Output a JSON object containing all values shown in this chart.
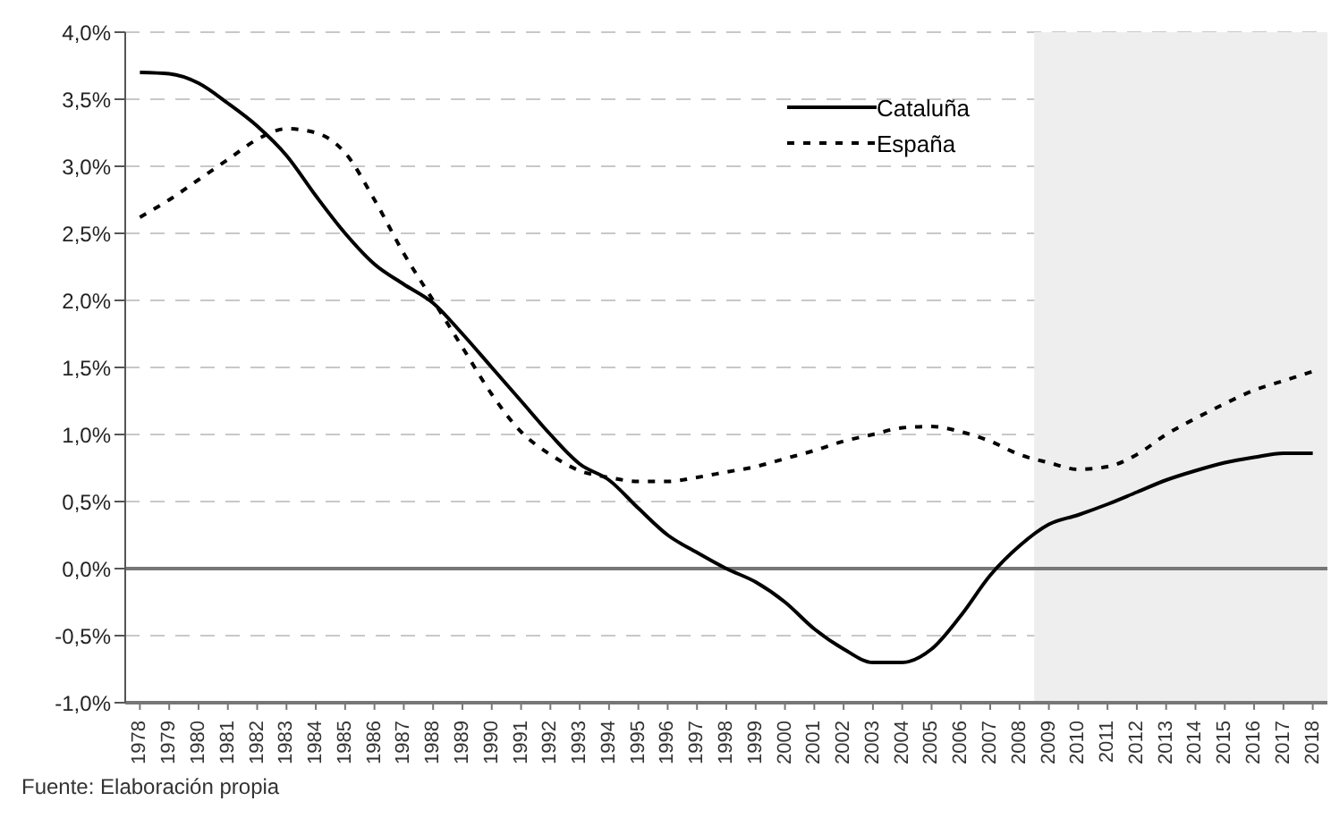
{
  "chart_data": {
    "type": "line",
    "categories": [
      "1978",
      "1979",
      "1980",
      "1981",
      "1982",
      "1983",
      "1984",
      "1985",
      "1986",
      "1987",
      "1988",
      "1989",
      "1990",
      "1991",
      "1992",
      "1993",
      "1994",
      "1995",
      "1996",
      "1997",
      "1998",
      "1999",
      "2000",
      "2001",
      "2002",
      "2003",
      "2004",
      "2005",
      "2006",
      "2007",
      "2008",
      "2009",
      "2010",
      "2011",
      "2012",
      "2013",
      "2014",
      "2015",
      "2016",
      "2017",
      "2018"
    ],
    "series": [
      {
        "name": "Cataluña",
        "color": "#000000",
        "line_style": "solid",
        "values": [
          3.7,
          3.69,
          3.62,
          3.47,
          3.3,
          3.08,
          2.78,
          2.5,
          2.27,
          2.12,
          1.98,
          1.75,
          1.5,
          1.25,
          1.0,
          0.78,
          0.66,
          0.45,
          0.25,
          0.12,
          0.0,
          -0.1,
          -0.25,
          -0.45,
          -0.6,
          -0.7,
          -0.7,
          -0.6,
          -0.35,
          -0.05,
          0.17,
          0.33,
          0.4,
          0.48,
          0.57,
          0.66,
          0.73,
          0.79,
          0.83,
          0.86,
          0.86
        ]
      },
      {
        "name": "España",
        "color": "#000000",
        "line_style": "dashed",
        "values": [
          2.62,
          2.75,
          2.9,
          3.05,
          3.2,
          3.28,
          3.25,
          3.1,
          2.75,
          2.35,
          2.0,
          1.65,
          1.3,
          1.02,
          0.85,
          0.73,
          0.68,
          0.65,
          0.65,
          0.68,
          0.72,
          0.76,
          0.82,
          0.88,
          0.95,
          1.0,
          1.05,
          1.06,
          1.02,
          0.95,
          0.85,
          0.79,
          0.74,
          0.76,
          0.85,
          1.0,
          1.12,
          1.23,
          1.33,
          1.4,
          1.47
        ]
      }
    ],
    "ylim": [
      -1.0,
      4.0
    ],
    "yticks": [
      {
        "value": -1.0,
        "label": "-1,0%"
      },
      {
        "value": -0.5,
        "label": "-0,5%"
      },
      {
        "value": 0,
        "label": "0,0%"
      },
      {
        "value": 0.5,
        "label": "0,5%"
      },
      {
        "value": 1.0,
        "label": "1,0%"
      },
      {
        "value": 1.5,
        "label": "1,5%"
      },
      {
        "value": 2.0,
        "label": "2,0%"
      },
      {
        "value": 2.5,
        "label": "2,5%"
      },
      {
        "value": 3.0,
        "label": "3,0%"
      },
      {
        "value": 3.5,
        "label": "3,5%"
      },
      {
        "value": 4.0,
        "label": "4,0%"
      }
    ],
    "bands": [
      {
        "axis": "x",
        "from": "2009",
        "to": "2018",
        "color": "#eeeeee"
      }
    ],
    "grid": "y",
    "legend": "top",
    "marker": "none",
    "annotations": [
      "Fuente: Elaboración propia"
    ]
  }
}
